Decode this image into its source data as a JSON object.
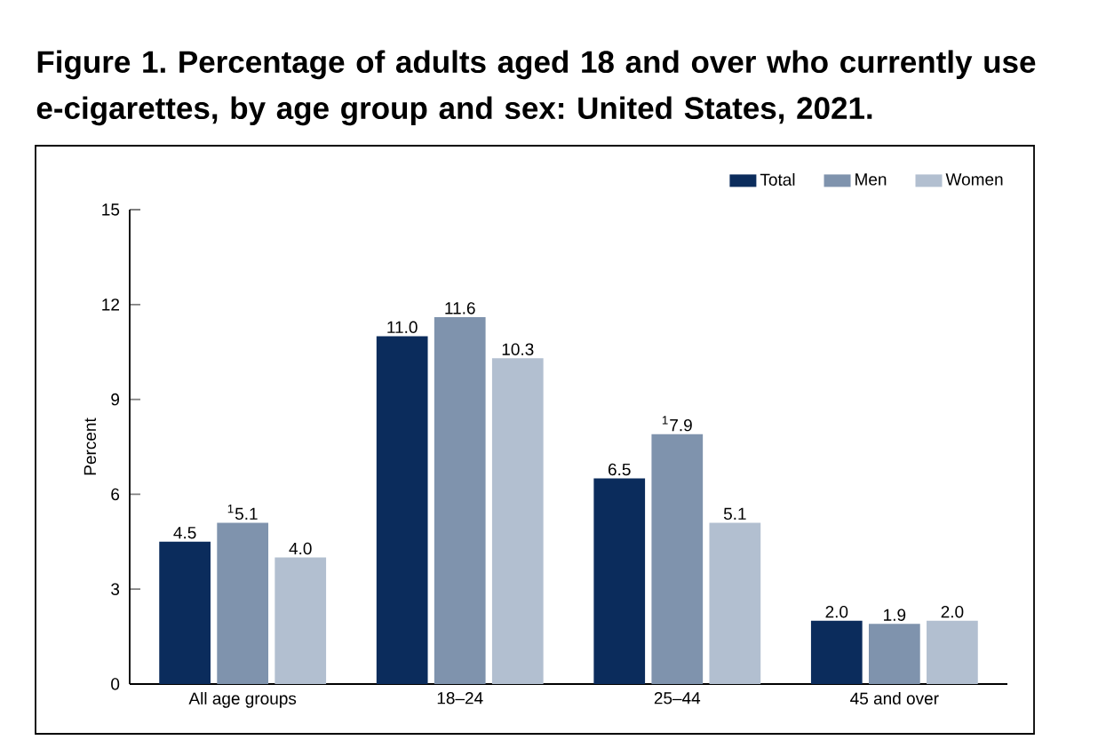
{
  "chart_data": {
    "type": "bar",
    "title": "Figure 1. Percentage of adults aged 18 and over who currently use e-cigarettes, by age group and sex: United States, 2021.",
    "ylabel": "Percent",
    "categories": [
      "All age groups",
      "18–24",
      "25–44",
      "45 and over"
    ],
    "series": [
      {
        "name": "Total",
        "color": "#0b2c5c",
        "values": [
          4.5,
          11.0,
          6.5,
          2.0
        ],
        "value_labels": [
          "4.5",
          "11.0",
          "6.5",
          "2.0"
        ]
      },
      {
        "name": "Men",
        "color": "#7f93ad",
        "values": [
          5.1,
          11.6,
          7.9,
          1.9
        ],
        "value_labels": [
          "$^{1}$5.1",
          "11.6",
          "$^{1}$7.9",
          "1.9"
        ]
      },
      {
        "name": "Women",
        "color": "#b2bfd0",
        "values": [
          4.0,
          10.3,
          5.1,
          2.0
        ],
        "value_labels": [
          "4.0",
          "10.3",
          "5.1",
          "2.0"
        ]
      }
    ],
    "ylim": [
      0,
      15
    ],
    "yticks": [
      0,
      3,
      6,
      9,
      12,
      15
    ],
    "legend": "top right"
  }
}
